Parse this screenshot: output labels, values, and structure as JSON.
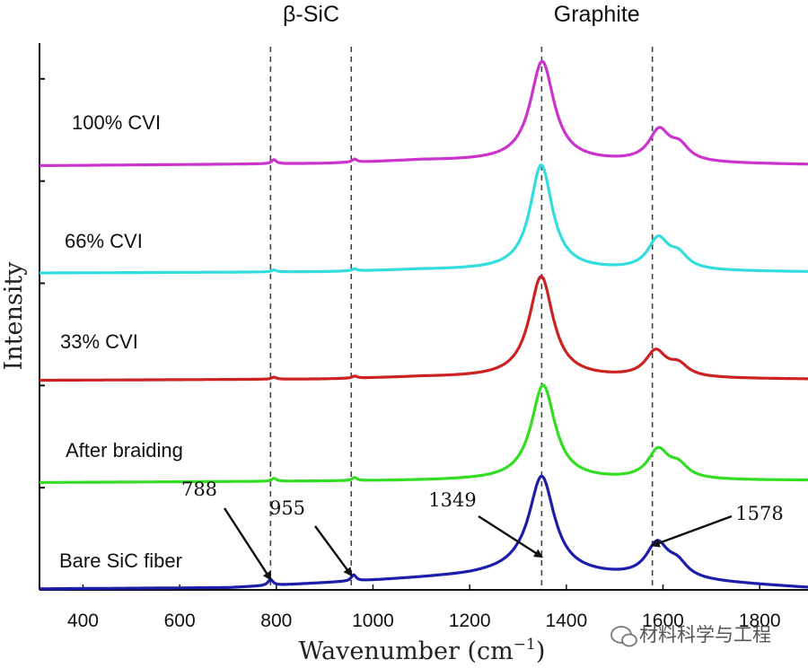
{
  "chart_data": {
    "type": "line",
    "title": "",
    "xlabel": "Wavenumber (cm",
    "xlabel_sup": "−1",
    "xlabel_tail": ")",
    "ylabel": "Intensity",
    "xlim": [
      310,
      1900
    ],
    "ylim": [
      0,
      5.35
    ],
    "xticks": [
      400,
      600,
      800,
      1000,
      1200,
      1400,
      1600,
      1800
    ],
    "xtick_labels": [
      "400",
      "600",
      "800",
      "1000",
      "1200",
      "1400",
      "1600",
      "1800"
    ],
    "yticks": [
      0,
      1,
      2,
      3,
      4,
      5
    ],
    "grid": false,
    "group_labels": [
      {
        "text": "β-SiC",
        "x": 872
      },
      {
        "text": "Graphite",
        "x": 1463
      }
    ],
    "reference_lines": [
      788,
      955,
      1349,
      1578
    ],
    "peak_annotations": [
      {
        "text": "788",
        "x": 788,
        "y": 0.06
      },
      {
        "text": "955",
        "x": 955,
        "y": 0.1
      },
      {
        "text": "1349",
        "x": 1349,
        "y": 0.28
      },
      {
        "text": "1578",
        "x": 1578,
        "y": 0.39
      }
    ],
    "series": [
      {
        "name": "Bare SiC fiber",
        "color": "#1d1dab",
        "baseline": 0,
        "background": [
          [
            310,
            0.01
          ],
          [
            700,
            0.02
          ],
          [
            1000,
            0.09
          ],
          [
            1200,
            0.14
          ],
          [
            1300,
            0.18
          ],
          [
            1900,
            0.02
          ]
        ],
        "peaks": [
          {
            "center": 1349,
            "height": 0.94,
            "width": 32
          },
          {
            "center": 1588,
            "height": 0.33,
            "width": 28
          },
          {
            "center": 1630,
            "height": 0.13,
            "width": 25
          },
          {
            "center": 788,
            "height": 0.06,
            "width": 6
          },
          {
            "center": 960,
            "height": 0.06,
            "width": 6
          }
        ]
      },
      {
        "name": "After braiding",
        "color": "#33dd22",
        "baseline": 1.05,
        "background": [
          [
            310,
            0.0
          ],
          [
            800,
            0.01
          ],
          [
            1200,
            0.02
          ],
          [
            1900,
            0.02
          ]
        ],
        "peaks": [
          {
            "center": 1352,
            "height": 0.93,
            "width": 30
          },
          {
            "center": 1590,
            "height": 0.28,
            "width": 26
          },
          {
            "center": 1632,
            "height": 0.12,
            "width": 24
          },
          {
            "center": 795,
            "height": 0.03,
            "width": 6
          },
          {
            "center": 962,
            "height": 0.03,
            "width": 6
          }
        ]
      },
      {
        "name": "33% CVI",
        "color": "#cc2222",
        "baseline": 2.05,
        "background": [
          [
            310,
            0.0
          ],
          [
            900,
            0.01
          ],
          [
            1100,
            0.03
          ],
          [
            1900,
            0.01
          ]
        ],
        "peaks": [
          {
            "center": 1348,
            "height": 0.99,
            "width": 30
          },
          {
            "center": 1585,
            "height": 0.25,
            "width": 26
          },
          {
            "center": 1632,
            "height": 0.11,
            "width": 24
          },
          {
            "center": 795,
            "height": 0.02,
            "width": 6
          },
          {
            "center": 962,
            "height": 0.02,
            "width": 6
          }
        ]
      },
      {
        "name": "66% CVI",
        "color": "#33dddd",
        "baseline": 3.1,
        "background": [
          [
            310,
            0.0
          ],
          [
            900,
            0.01
          ],
          [
            1100,
            0.03
          ],
          [
            1900,
            0.01
          ]
        ],
        "peaks": [
          {
            "center": 1348,
            "height": 1.03,
            "width": 28
          },
          {
            "center": 1590,
            "height": 0.3,
            "width": 26
          },
          {
            "center": 1632,
            "height": 0.13,
            "width": 24
          },
          {
            "center": 795,
            "height": 0.02,
            "width": 6
          },
          {
            "center": 962,
            "height": 0.02,
            "width": 6
          }
        ]
      },
      {
        "name": "100% CVI",
        "color": "#cc33cc",
        "baseline": 4.15,
        "background": [
          [
            310,
            0.0
          ],
          [
            900,
            0.02
          ],
          [
            1100,
            0.05
          ],
          [
            1900,
            0.01
          ]
        ],
        "peaks": [
          {
            "center": 1350,
            "height": 0.98,
            "width": 30
          },
          {
            "center": 1592,
            "height": 0.3,
            "width": 26
          },
          {
            "center": 1634,
            "height": 0.14,
            "width": 24
          },
          {
            "center": 795,
            "height": 0.04,
            "width": 6
          },
          {
            "center": 962,
            "height": 0.03,
            "width": 6
          }
        ]
      }
    ]
  },
  "watermark": {
    "icon": "wechat-icon",
    "text": "材料科学与工程"
  }
}
